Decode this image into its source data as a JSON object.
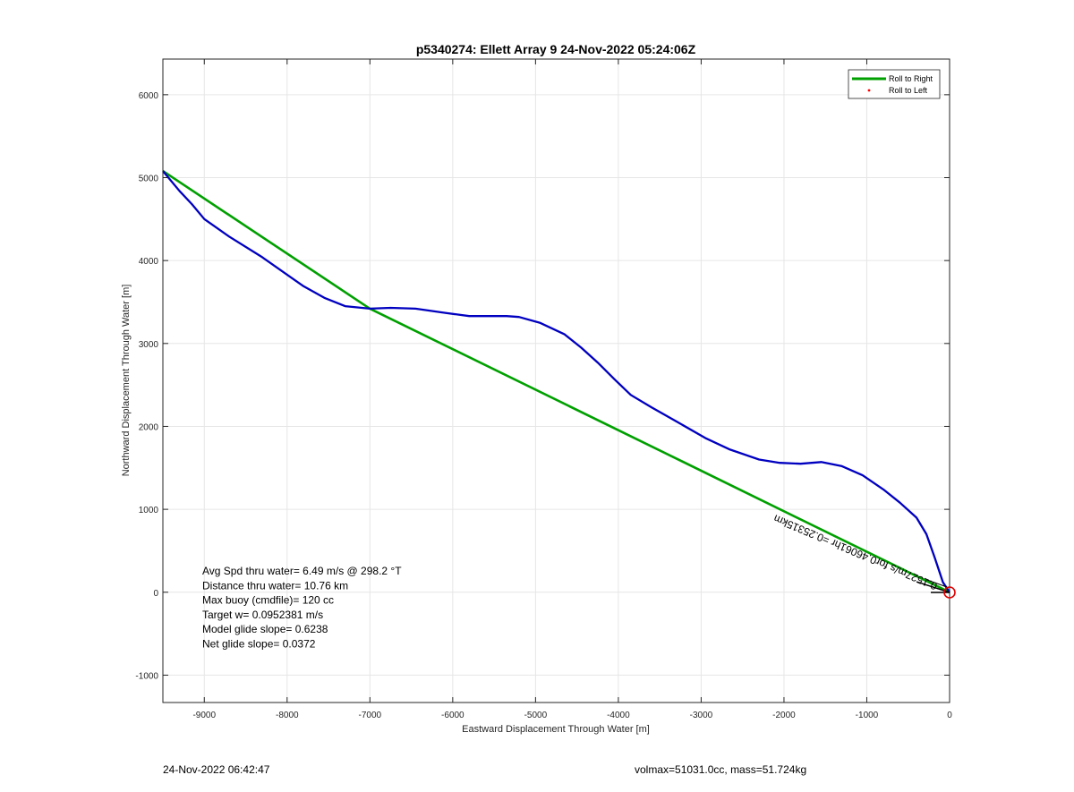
{
  "chart_data": {
    "type": "line",
    "title": "p5340274: Ellett Array 9 24-Nov-2022 05:24:06Z",
    "xlabel": "Eastward Displacement Through Water [m]",
    "ylabel": "Northward Displacement Through Water [m]",
    "xlim": [
      -9500,
      0
    ],
    "ylim": [
      -1330,
      6430
    ],
    "xticks": [
      -9000,
      -8000,
      -7000,
      -6000,
      -5000,
      -4000,
      -3000,
      -2000,
      -1000,
      0
    ],
    "yticks": [
      -1000,
      0,
      1000,
      2000,
      3000,
      4000,
      5000,
      6000
    ],
    "grid": true,
    "legend_position": "top-right",
    "series": [
      {
        "name": "Roll to Right",
        "color": "#00a000",
        "style": "line",
        "x": [
          -9500,
          -7000,
          0
        ],
        "y": [
          5080,
          3420,
          0
        ]
      },
      {
        "name": "Roll to Left",
        "color": "#ff0000",
        "style": "marker",
        "x": [],
        "y": []
      },
      {
        "name": "",
        "color": "#0000c0",
        "style": "line",
        "x": [
          -9500,
          -9400,
          -9300,
          -9150,
          -9000,
          -8700,
          -8300,
          -7900,
          -7800,
          -7550,
          -7300,
          -7000,
          -6750,
          -6450,
          -6100,
          -5800,
          -5500,
          -5350,
          -5200,
          -4950,
          -4650,
          -4450,
          -4250,
          -4050,
          -3850,
          -3600,
          -3300,
          -2950,
          -2650,
          -2300,
          -2050,
          -1800,
          -1550,
          -1300,
          -1050,
          -800,
          -600,
          -400,
          -280,
          -180,
          -80,
          0
        ],
        "y": [
          5080,
          4960,
          4840,
          4680,
          4500,
          4290,
          4040,
          3760,
          3690,
          3550,
          3450,
          3420,
          3430,
          3420,
          3370,
          3330,
          3330,
          3330,
          3320,
          3250,
          3110,
          2950,
          2770,
          2570,
          2380,
          2230,
          2060,
          1860,
          1720,
          1600,
          1560,
          1550,
          1570,
          1520,
          1410,
          1240,
          1080,
          900,
          700,
          420,
          120,
          0
        ]
      }
    ],
    "annotations": [
      "Avg Spd thru water=  6.49 m/s @ 298.2 °T",
      "Distance thru water= 10.76 km",
      "Max buoy (cmdfile)= 120 cc",
      "Target w= 0.0952381 m/s",
      "Model glide slope= 0.6238",
      "Net glide slope= 0.0372"
    ],
    "current_label": "0.1527m/s for0.46061hr =0.25315km",
    "marker_color": "#e00000"
  },
  "footer": {
    "left": "24-Nov-2022 06:42:47",
    "right": "volmax=51031.0cc, mass=51.724kg"
  }
}
